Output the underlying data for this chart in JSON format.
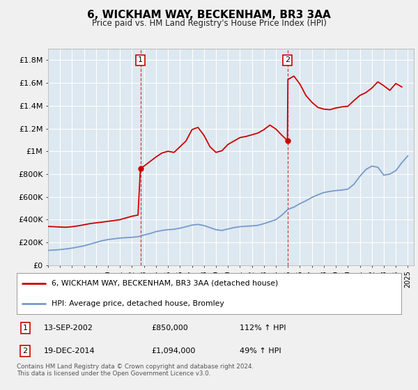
{
  "title": "6, WICKHAM WAY, BECKENHAM, BR3 3AA",
  "subtitle": "Price paid vs. HM Land Registry's House Price Index (HPI)",
  "background_color": "#f0f0f0",
  "plot_bg_color": "#dde8f0",
  "grid_color": "#ffffff",
  "red_line_color": "#cc0000",
  "blue_line_color": "#7799cc",
  "legend_label_red": "6, WICKHAM WAY, BECKENHAM, BR3 3AA (detached house)",
  "legend_label_blue": "HPI: Average price, detached house, Bromley",
  "sale1_label": "1",
  "sale1_date": "13-SEP-2002",
  "sale1_price": "£850,000",
  "sale1_hpi": "112% ↑ HPI",
  "sale1_year": 2002.7,
  "sale1_value": 850000,
  "sale2_label": "2",
  "sale2_date": "19-DEC-2014",
  "sale2_price": "£1,094,000",
  "sale2_hpi": "49% ↑ HPI",
  "sale2_year": 2014.96,
  "sale2_value": 1094000,
  "footnote": "Contains HM Land Registry data © Crown copyright and database right 2024.\nThis data is licensed under the Open Government Licence v3.0.",
  "ylim": [
    0,
    1900000
  ],
  "yticks": [
    0,
    200000,
    400000,
    600000,
    800000,
    1000000,
    1200000,
    1400000,
    1600000,
    1800000
  ],
  "ytick_labels": [
    "£0",
    "£200K",
    "£400K",
    "£600K",
    "£800K",
    "£1M",
    "£1.2M",
    "£1.4M",
    "£1.6M",
    "£1.8M"
  ],
  "hpi_years": [
    1995.0,
    1995.5,
    1996.0,
    1996.5,
    1997.0,
    1997.5,
    1998.0,
    1998.5,
    1999.0,
    1999.5,
    2000.0,
    2000.5,
    2001.0,
    2001.5,
    2002.0,
    2002.5,
    2003.0,
    2003.5,
    2004.0,
    2004.5,
    2005.0,
    2005.5,
    2006.0,
    2006.5,
    2007.0,
    2007.5,
    2008.0,
    2008.5,
    2009.0,
    2009.5,
    2010.0,
    2010.5,
    2011.0,
    2011.5,
    2012.0,
    2012.5,
    2013.0,
    2013.5,
    2014.0,
    2014.5,
    2015.0,
    2015.5,
    2016.0,
    2016.5,
    2017.0,
    2017.5,
    2018.0,
    2018.5,
    2019.0,
    2019.5,
    2020.0,
    2020.5,
    2021.0,
    2021.5,
    2022.0,
    2022.5,
    2023.0,
    2023.5,
    2024.0,
    2024.5,
    2025.0
  ],
  "hpi_values": [
    130000,
    133000,
    137000,
    143000,
    150000,
    160000,
    170000,
    185000,
    200000,
    215000,
    225000,
    232000,
    238000,
    242000,
    245000,
    250000,
    265000,
    278000,
    295000,
    305000,
    312000,
    315000,
    325000,
    338000,
    352000,
    358000,
    348000,
    330000,
    312000,
    305000,
    318000,
    330000,
    338000,
    342000,
    345000,
    350000,
    365000,
    382000,
    400000,
    440000,
    490000,
    510000,
    540000,
    565000,
    595000,
    618000,
    638000,
    648000,
    655000,
    660000,
    668000,
    710000,
    780000,
    840000,
    870000,
    860000,
    790000,
    800000,
    830000,
    900000,
    960000
  ],
  "red_years": [
    1995.0,
    1995.5,
    1996.0,
    1996.5,
    1997.0,
    1997.5,
    1998.0,
    1998.5,
    1999.0,
    1999.5,
    2000.0,
    2000.5,
    2001.0,
    2001.5,
    2002.0,
    2002.5,
    2002.7,
    2003.0,
    2003.5,
    2004.0,
    2004.5,
    2005.0,
    2005.5,
    2006.0,
    2006.5,
    2007.0,
    2007.5,
    2008.0,
    2008.5,
    2009.0,
    2009.5,
    2010.0,
    2010.5,
    2011.0,
    2011.5,
    2012.0,
    2012.5,
    2013.0,
    2013.5,
    2014.0,
    2014.5,
    2014.96,
    2015.0,
    2015.5,
    2016.0,
    2016.5,
    2017.0,
    2017.5,
    2018.0,
    2018.5,
    2019.0,
    2019.5,
    2020.0,
    2020.5,
    2021.0,
    2021.5,
    2022.0,
    2022.5,
    2023.0,
    2023.5,
    2024.0,
    2024.5
  ],
  "red_values": [
    340000,
    338000,
    335000,
    333000,
    338000,
    345000,
    355000,
    365000,
    372000,
    378000,
    385000,
    392000,
    400000,
    415000,
    430000,
    440000,
    850000,
    870000,
    910000,
    950000,
    985000,
    1000000,
    990000,
    1040000,
    1090000,
    1190000,
    1210000,
    1140000,
    1040000,
    990000,
    1005000,
    1060000,
    1090000,
    1120000,
    1130000,
    1145000,
    1160000,
    1190000,
    1230000,
    1195000,
    1140000,
    1094000,
    1630000,
    1660000,
    1590000,
    1490000,
    1430000,
    1385000,
    1370000,
    1365000,
    1380000,
    1390000,
    1395000,
    1445000,
    1490000,
    1515000,
    1555000,
    1610000,
    1575000,
    1535000,
    1595000,
    1565000
  ]
}
